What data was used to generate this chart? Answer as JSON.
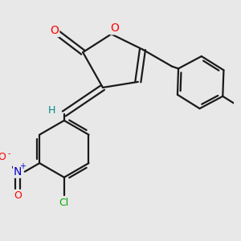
{
  "bg_color": "#e8e8e8",
  "bond_color": "#1a1a1a",
  "bond_width": 1.6,
  "dbo": 0.055,
  "atom_colors": {
    "O": "#ff0000",
    "N": "#0000cc",
    "Cl": "#00aa00",
    "H": "#008888",
    "C": "#1a1a1a"
  },
  "fs": 9
}
